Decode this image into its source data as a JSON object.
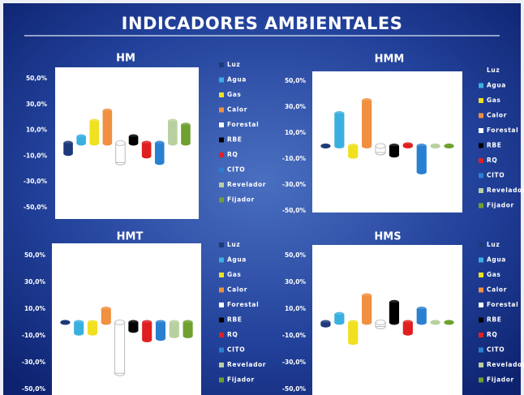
{
  "page_title": "INDICADORES AMBIENTALES",
  "chart_data": [
    {
      "type": "bar",
      "title": "HM",
      "categories": [
        "Luz",
        "Agua",
        "Gas",
        "Calor",
        "Forestal",
        "RBE",
        "RQ",
        "CITO",
        "Revelador",
        "Fijador"
      ],
      "colors": [
        "#1f3a7a",
        "#3ab0e0",
        "#f0e020",
        "#f09040",
        "#ffffff",
        "#000000",
        "#e02020",
        "#2a80d0",
        "#b8d0a0",
        "#70a030"
      ],
      "values": [
        -8,
        5,
        17,
        25,
        -15,
        5,
        -10,
        -15,
        17,
        14
      ],
      "ylim": [
        -50,
        50
      ],
      "yticks": [
        {
          "value": 50,
          "label": "50,0%"
        },
        {
          "value": 30,
          "label": "30,0%"
        },
        {
          "value": 10,
          "label": "10,0%"
        },
        {
          "value": -10,
          "label": "-10,0%"
        },
        {
          "value": -30,
          "label": "-30,0%"
        },
        {
          "value": -50,
          "label": "-50,0%"
        }
      ]
    },
    {
      "type": "bar",
      "title": "HMM",
      "categories": [
        "Luz",
        "Agua",
        "Gas",
        "Calor",
        "Forestal",
        "RBE",
        "RQ",
        "CITO",
        "Revelador",
        "Fijador"
      ],
      "colors": [
        "#1f3a7a",
        "#3ab0e0",
        "#f0e020",
        "#f09040",
        "#ffffff",
        "#000000",
        "#e02020",
        "#2a80d0",
        "#b8d0a0",
        "#70a030"
      ],
      "values": [
        0,
        25,
        -8,
        35,
        -5,
        -7,
        1,
        -20,
        0,
        0
      ],
      "ylim": [
        -50,
        50
      ],
      "yticks": [
        {
          "value": 50,
          "label": "50,0%"
        },
        {
          "value": 30,
          "label": "30,0%"
        },
        {
          "value": 10,
          "label": "10,0%"
        },
        {
          "value": -10,
          "label": "-10,0%"
        },
        {
          "value": -30,
          "label": "-30,0%"
        },
        {
          "value": -50,
          "label": "-50,0%"
        }
      ]
    },
    {
      "type": "bar",
      "title": "HMT",
      "categories": [
        "Luz",
        "Agua",
        "Gas",
        "Calor",
        "Forestal",
        "RBE",
        "RQ",
        "CITO",
        "Revelador",
        "Fijador"
      ],
      "colors": [
        "#1f3a7a",
        "#3ab0e0",
        "#f0e020",
        "#f09040",
        "#ffffff",
        "#000000",
        "#e02020",
        "#2a80d0",
        "#b8d0a0",
        "#70a030"
      ],
      "values": [
        0,
        -8,
        -8,
        10,
        -38,
        -6,
        -13,
        -12,
        -10,
        -10
      ],
      "ylim": [
        -50,
        50
      ],
      "yticks": [
        {
          "value": 50,
          "label": "50,0%"
        },
        {
          "value": 30,
          "label": "30,0%"
        },
        {
          "value": 10,
          "label": "10,0%"
        },
        {
          "value": -10,
          "label": "-10,0%"
        },
        {
          "value": -30,
          "label": "-30,0%"
        },
        {
          "value": -50,
          "label": "-50,0%"
        }
      ]
    },
    {
      "type": "bar",
      "title": "HMS",
      "categories": [
        "Luz",
        "Agua",
        "Gas",
        "Calor",
        "Forestal",
        "RBE",
        "RQ",
        "CITO",
        "Revelador",
        "Fijador"
      ],
      "colors": [
        "#1f3a7a",
        "#3ab0e0",
        "#f0e020",
        "#f09040",
        "#ffffff",
        "#000000",
        "#e02020",
        "#2a80d0",
        "#b8d0a0",
        "#70a030"
      ],
      "values": [
        -2,
        6,
        -15,
        20,
        -3,
        15,
        -8,
        10,
        0,
        0
      ],
      "ylim": [
        -50,
        50
      ],
      "yticks": [
        {
          "value": 50,
          "label": "50,0%"
        },
        {
          "value": 30,
          "label": "30,0%"
        },
        {
          "value": 10,
          "label": "10,0%"
        },
        {
          "value": -10,
          "label": "-10,0%"
        },
        {
          "value": -30,
          "label": "-30,0%"
        },
        {
          "value": -50,
          "label": "-50,0%"
        }
      ]
    }
  ]
}
